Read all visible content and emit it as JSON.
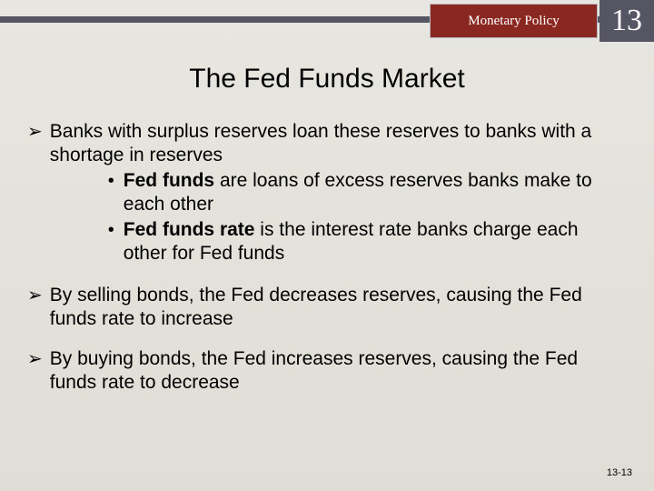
{
  "header": {
    "label": "Monetary Policy",
    "chapter_number": "13",
    "label_bg": "#8b2721",
    "bar_bg": "#555563",
    "number_bg": "#555563"
  },
  "title": "The Fed Funds Market",
  "bullets": [
    {
      "text": "Banks with surplus reserves loan these reserves to banks with a shortage in reserves",
      "sub": [
        {
          "bold": "Fed funds",
          "rest": " are loans of excess reserves banks make to each other"
        },
        {
          "bold": "Fed funds rate",
          "rest": " is the interest rate banks charge each other for Fed funds"
        }
      ]
    },
    {
      "text": "By selling bonds, the Fed decreases reserves, causing the Fed funds rate to increase",
      "sub": []
    },
    {
      "text": "By buying bonds, the Fed increases reserves, causing the Fed funds rate to decrease",
      "sub": []
    }
  ],
  "footer": "13-13",
  "colors": {
    "page_bg_top": "#e8e6e0",
    "page_bg_bottom": "#dfddd5",
    "text": "#000000",
    "header_text": "#ffffff"
  },
  "fonts": {
    "body": "Arial",
    "header": "Times New Roman",
    "title_size": 30,
    "body_size": 21
  }
}
